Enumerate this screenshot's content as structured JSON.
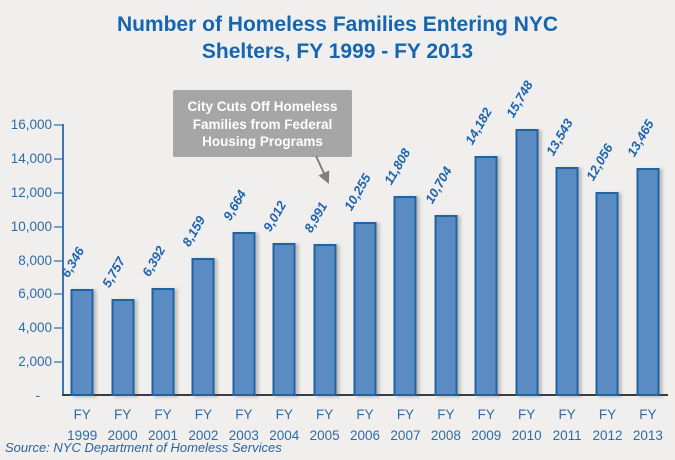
{
  "page": {
    "background": "#f0efed"
  },
  "title_lines": [
    "Number of Homeless Families Entering NYC",
    "Shelters, FY 1999 - FY 2013"
  ],
  "chart_data": {
    "type": "bar",
    "title": "Number of Homeless Families Entering NYC Shelters, FY 1999 - FY 2013",
    "categories": [
      "FY 1999",
      "FY 2000",
      "FY 2001",
      "FY 2002",
      "FY 2003",
      "FY 2004",
      "FY 2005",
      "FY 2006",
      "FY 2007",
      "FY 2008",
      "FY 2009",
      "FY 2010",
      "FY 2011",
      "FY 2012",
      "FY 2013"
    ],
    "values": [
      6346,
      5757,
      6392,
      8159,
      9664,
      9012,
      8991,
      10255,
      11808,
      10704,
      14182,
      15748,
      13543,
      12056,
      13465
    ],
    "value_labels": [
      "6,346",
      "5,757",
      "6,392",
      "8,159",
      "9,664",
      "9,012",
      "8,991",
      "10,255",
      "11,808",
      "10,704",
      "14,182",
      "15,748",
      "13,543",
      "12,056",
      "13,465"
    ],
    "xlabel": "",
    "ylabel": "",
    "ylim": [
      0,
      16000
    ],
    "ytick_interval": 2000,
    "yticks": [
      {
        "value": 16000,
        "label": "16,000"
      },
      {
        "value": 14000,
        "label": "14,000"
      },
      {
        "value": 12000,
        "label": "12,000"
      },
      {
        "value": 10000,
        "label": "10,000"
      },
      {
        "value": 8000,
        "label": "8,000"
      },
      {
        "value": 6000,
        "label": "6,000"
      },
      {
        "value": 4000,
        "label": "4,000"
      },
      {
        "value": 2000,
        "label": "2,000"
      },
      {
        "value": 0,
        "label": "-"
      }
    ],
    "grid": false,
    "legend": "none",
    "bar_fill": "#5a8cc3",
    "bar_border": "#2063a5",
    "value_label_color": "#1d64ae",
    "axis_label_color": "#2d6ca8"
  },
  "annotation": {
    "lines": [
      "City Cuts Off Homeless",
      "Families from Federal",
      "Housing Programs"
    ],
    "background": "#a6a6a6",
    "text_color": "#ffffff",
    "arrow_color": "#7f7f7f"
  },
  "source": "Source:  NYC Department of Homeless Services"
}
